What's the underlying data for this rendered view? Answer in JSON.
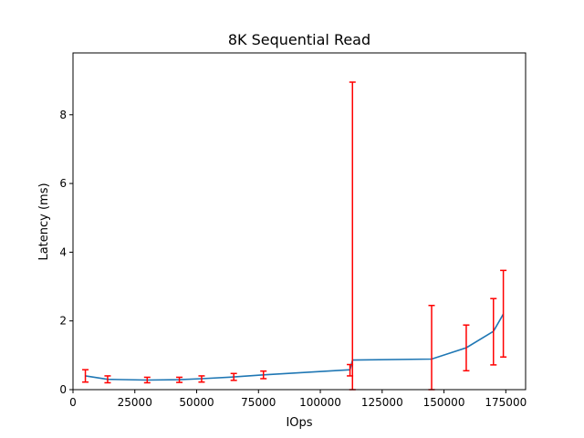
{
  "chart_data": {
    "type": "line",
    "title": "8K  Sequential Read",
    "xlabel": "IOps",
    "ylabel": "Latency (ms)",
    "xlim": [
      0,
      183000
    ],
    "ylim": [
      0,
      9.8
    ],
    "x_ticks": [
      0,
      25000,
      50000,
      75000,
      100000,
      125000,
      150000,
      175000
    ],
    "y_ticks": [
      0,
      2,
      4,
      6,
      8
    ],
    "grid": false,
    "colors": {
      "line": "#1f77b4",
      "error_bars": "#ff0000"
    },
    "series": [
      {
        "x": [
          5000,
          14000,
          30000,
          43000,
          52000,
          65000,
          77000,
          112000,
          113000,
          145000,
          159000,
          170000,
          174000
        ],
        "y": [
          0.4,
          0.3,
          0.28,
          0.29,
          0.32,
          0.37,
          0.43,
          0.58,
          0.86,
          0.89,
          1.22,
          1.7,
          2.2
        ],
        "err_low": [
          0.22,
          0.2,
          0.2,
          0.21,
          0.22,
          0.27,
          0.32,
          0.4,
          0.0,
          0.0,
          0.55,
          0.72,
          0.95
        ],
        "err_high": [
          0.58,
          0.4,
          0.36,
          0.36,
          0.4,
          0.47,
          0.54,
          0.73,
          8.95,
          2.45,
          1.88,
          2.65,
          3.47
        ]
      }
    ]
  }
}
